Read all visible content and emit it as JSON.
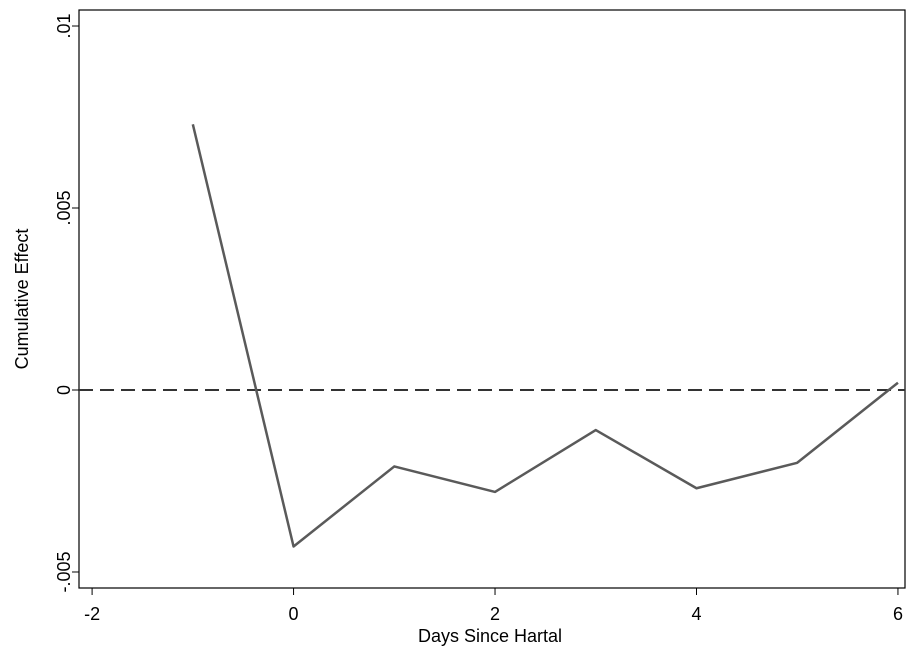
{
  "chart_data": {
    "type": "line",
    "x_label": "Days Since Hartal",
    "y_label": "Cumulative Effect",
    "x": [
      -1,
      0,
      1,
      2,
      3,
      4,
      5,
      6
    ],
    "series": [
      {
        "color": "#5a5a5a",
        "values": [
          0.0073,
          -0.0043,
          -0.0021,
          -0.0028,
          -0.0011,
          -0.0027,
          -0.002,
          0.0002
        ]
      }
    ],
    "xlim": [
      -2.13,
      6.07
    ],
    "xticks": [
      -2,
      0,
      2,
      4,
      6
    ],
    "ylim": [
      -0.00544,
      0.01044
    ],
    "yticks": [
      {
        "value": -0.005,
        "label": "-.005"
      },
      {
        "value": 0,
        "label": "0"
      },
      {
        "value": 0.005,
        "label": ".005"
      },
      {
        "value": 0.01,
        "label": ".01"
      }
    ],
    "reference_line": {
      "value": 0,
      "color": "#333333",
      "dashed": true
    }
  }
}
